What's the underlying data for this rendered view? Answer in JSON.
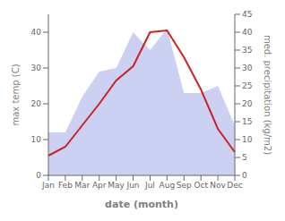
{
  "chart_data": {
    "type": "line",
    "xlabel": "date (month)",
    "ylabel": "max temp (C)",
    "y2label": "med. precipitation (kg/m2)",
    "categories": [
      "Jan",
      "Feb",
      "Mar",
      "Apr",
      "May",
      "Jun",
      "Jul",
      "Aug",
      "Sep",
      "Oct",
      "Nov",
      "Dec"
    ],
    "series": [
      {
        "type": "area",
        "axis": "y2",
        "color": "#b0b8ee",
        "values": [
          12,
          12,
          22,
          29,
          30,
          40,
          35,
          41,
          23,
          23,
          25,
          14
        ]
      },
      {
        "type": "line",
        "color": "#cc2222",
        "values": [
          5.5,
          8.0,
          14.0,
          20.0,
          26.5,
          30.5,
          40.0,
          40.5,
          33.0,
          24.0,
          13.0,
          6.5
        ]
      }
    ],
    "ylim": [
      0,
      45
    ],
    "yticks": [
      0,
      10,
      20,
      30,
      40
    ],
    "y2lim": [
      0,
      45
    ],
    "y2ticks": [
      0,
      5,
      10,
      15,
      20,
      25,
      30,
      35,
      40,
      45
    ],
    "grid": false
  }
}
